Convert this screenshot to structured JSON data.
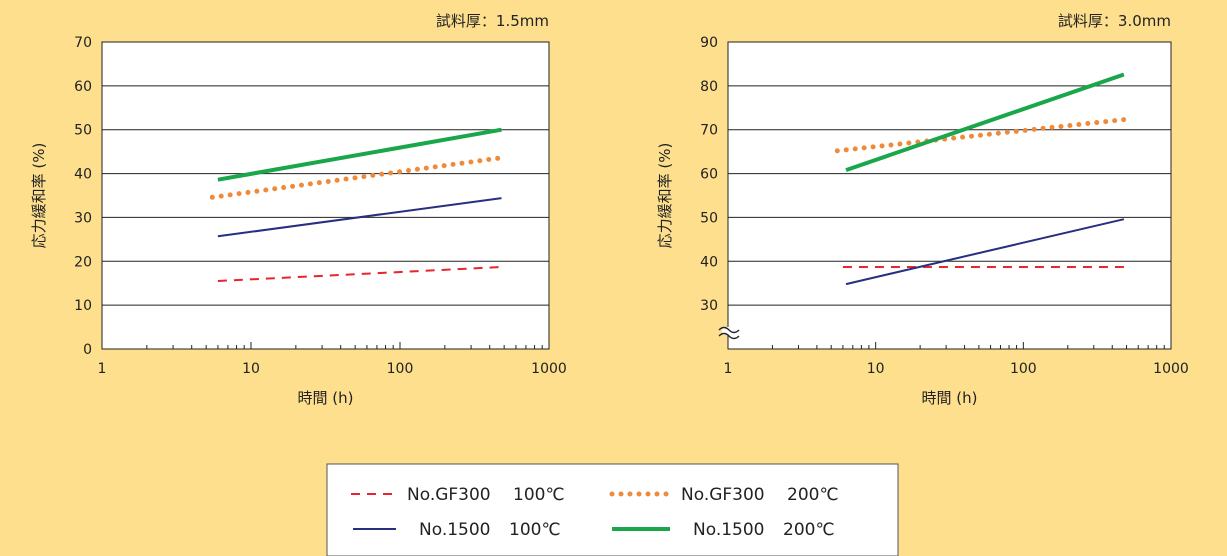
{
  "chart_data": [
    {
      "type": "line",
      "title": "試料厚：1.5mm",
      "xlabel": "時間 (h)",
      "ylabel": "応力緩和率 (%)",
      "x_scale": "log",
      "xlim": [
        1,
        1000
      ],
      "ylim": [
        0,
        70
      ],
      "x_ticks": [
        "1",
        "10",
        "100",
        "1000"
      ],
      "y_ticks": [
        "0",
        "10",
        "20",
        "30",
        "40",
        "50",
        "60",
        "70"
      ],
      "grid": "horizontal",
      "axis_break": false,
      "series": [
        {
          "id": "gf300_100",
          "x": [
            6,
            480
          ],
          "y": [
            15.5,
            18.7
          ],
          "color": "#e8242c",
          "style": "dashed"
        },
        {
          "id": "gf300_200",
          "x": [
            5.5,
            480
          ],
          "y": [
            34.6,
            43.6
          ],
          "color": "#ef8a3a",
          "style": "dotted"
        },
        {
          "id": "n1500_100",
          "x": [
            6,
            480
          ],
          "y": [
            25.7,
            34.4
          ],
          "color": "#26307f",
          "style": "solid-thin"
        },
        {
          "id": "n1500_200",
          "x": [
            6,
            480
          ],
          "y": [
            38.6,
            50.0
          ],
          "color": "#1aa64a",
          "style": "solid-thick"
        }
      ]
    },
    {
      "type": "line",
      "title": "試料厚：3.0mm",
      "xlabel": "時間 (h)",
      "ylabel": "応力緩和率 (%)",
      "x_scale": "log",
      "xlim": [
        1,
        1000
      ],
      "ylim": [
        20,
        90
      ],
      "x_ticks": [
        "1",
        "10",
        "100",
        "1000"
      ],
      "y_ticks": [
        "30",
        "40",
        "50",
        "60",
        "70",
        "80",
        "90"
      ],
      "grid": "horizontal",
      "axis_break": true,
      "series": [
        {
          "id": "gf300_100",
          "x": [
            6,
            480
          ],
          "y": [
            38.7,
            38.7
          ],
          "color": "#e8242c",
          "style": "dashed"
        },
        {
          "id": "gf300_200",
          "x": [
            5.5,
            480
          ],
          "y": [
            65.2,
            72.3
          ],
          "color": "#ef8a3a",
          "style": "dotted"
        },
        {
          "id": "n1500_100",
          "x": [
            6.3,
            480
          ],
          "y": [
            34.8,
            49.6
          ],
          "color": "#26307f",
          "style": "solid-thin"
        },
        {
          "id": "n1500_200",
          "x": [
            6.3,
            480
          ],
          "y": [
            60.8,
            82.6
          ],
          "color": "#1aa64a",
          "style": "solid-thick"
        }
      ]
    }
  ],
  "legend": {
    "items": [
      {
        "series": "gf300_100",
        "name": "No.GF300",
        "temp": "100℃"
      },
      {
        "series": "gf300_200",
        "name": "No.GF300",
        "temp": "200℃"
      },
      {
        "series": "n1500_100",
        "name": "No.1500",
        "temp": "100℃"
      },
      {
        "series": "n1500_200",
        "name": "No.1500",
        "temp": "200℃"
      }
    ]
  },
  "styles": {
    "gf300_100": {
      "color": "#e8242c",
      "style": "dashed"
    },
    "gf300_200": {
      "color": "#ef8a3a",
      "style": "dotted"
    },
    "n1500_100": {
      "color": "#26307f",
      "style": "solid-thin"
    },
    "n1500_200": {
      "color": "#1aa64a",
      "style": "solid-thick"
    }
  }
}
